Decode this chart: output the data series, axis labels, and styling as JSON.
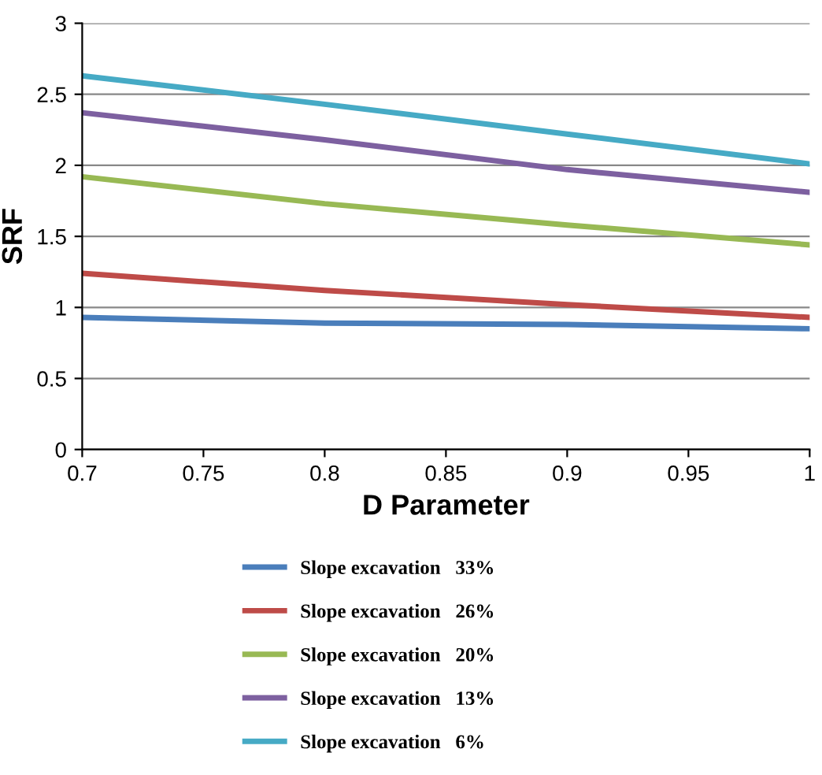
{
  "chart_data": {
    "type": "line",
    "xlabel": "D Parameter",
    "ylabel": "SRF",
    "x": [
      0.7,
      0.8,
      0.9,
      1.0
    ],
    "xlim": [
      0.7,
      1
    ],
    "xticks": [
      0.7,
      0.75,
      0.8,
      0.85,
      0.9,
      0.95,
      1
    ],
    "ylim": [
      0,
      3
    ],
    "yticks": [
      0,
      0.5,
      1,
      1.5,
      2,
      2.5,
      3
    ],
    "grid": "y",
    "legend": "bottom",
    "marker": "none",
    "line_style": "solid",
    "series": [
      {
        "name": "Slope excavation   33%",
        "color": "#4a7ebb",
        "values": [
          0.93,
          0.89,
          0.88,
          0.85
        ]
      },
      {
        "name": "Slope excavation   26%",
        "color": "#be4b48",
        "values": [
          1.24,
          1.12,
          1.02,
          0.93
        ]
      },
      {
        "name": "Slope excavation   20%",
        "color": "#98b954",
        "values": [
          1.92,
          1.73,
          1.58,
          1.44
        ]
      },
      {
        "name": "Slope excavation   13%",
        "color": "#7d60a0",
        "values": [
          2.37,
          2.18,
          1.97,
          1.81
        ]
      },
      {
        "name": "Slope excavation   6%",
        "color": "#46aac5",
        "values": [
          2.63,
          2.43,
          2.22,
          2.01
        ]
      }
    ]
  }
}
